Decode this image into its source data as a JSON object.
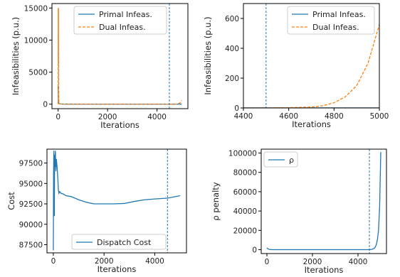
{
  "chart_data": [
    {
      "type": "line",
      "xlabel": "Iterations",
      "ylabel": "Infeasibilities (p.u.)",
      "xlim": [
        -250,
        5250
      ],
      "ylim": [
        -700,
        15700
      ],
      "xticks": [
        0,
        2000,
        4000
      ],
      "yticks": [
        0,
        5000,
        10000,
        15000
      ],
      "grid": false,
      "legend": {
        "placement": "upper-right",
        "entries": [
          "Primal Infeas.",
          "Dual Infeas."
        ]
      },
      "vline_x": 4500,
      "series": [
        {
          "name": "Primal Infeas.",
          "style": "solid",
          "color": "#1f77b4",
          "x": [
            0,
            10,
            30,
            60,
            100,
            300,
            1000,
            2000,
            3000,
            4000,
            4500,
            5000
          ],
          "y": [
            3000,
            500,
            150,
            60,
            30,
            15,
            8,
            6,
            5,
            5,
            5,
            5
          ]
        },
        {
          "name": "Dual Infeas.",
          "style": "dashed",
          "color": "#ff7f0e",
          "x": [
            0,
            5,
            10,
            15,
            20,
            25,
            30,
            40,
            50,
            70,
            100,
            200,
            1000,
            2000,
            3000,
            4000,
            4500,
            4800,
            4900,
            4950,
            5000
          ],
          "y": [
            0,
            15000,
            6000,
            15000,
            5000,
            1500,
            300,
            100,
            60,
            40,
            25,
            10,
            5,
            3,
            3,
            3,
            3,
            30,
            130,
            280,
            600
          ]
        }
      ]
    },
    {
      "type": "line",
      "xlabel": "Iterations",
      "ylabel": "Infeasibilities (p.u.)",
      "xlim": [
        4400,
        5000
      ],
      "ylim": [
        0,
        700
      ],
      "xticks": [
        4400,
        4600,
        4800,
        5000
      ],
      "yticks": [
        0,
        200,
        400,
        600
      ],
      "grid": false,
      "legend": {
        "placement": "upper-right",
        "entries": [
          "Primal Infeas.",
          "Dual Infeas."
        ]
      },
      "vline_x": 4500,
      "series": [
        {
          "name": "Primal Infeas.",
          "style": "solid",
          "color": "#1f77b4",
          "x": [
            4400,
            4600,
            4800,
            5000
          ],
          "y": [
            0.5,
            0.5,
            0.5,
            0.5
          ]
        },
        {
          "name": "Dual Infeas.",
          "style": "dashed",
          "color": "#ff7f0e",
          "x": [
            4400,
            4500,
            4600,
            4700,
            4750,
            4800,
            4850,
            4900,
            4950,
            5000
          ],
          "y": [
            0,
            0.5,
            2,
            6,
            15,
            35,
            75,
            150,
            300,
            560
          ]
        }
      ]
    },
    {
      "type": "line",
      "xlabel": "Iterations",
      "ylabel": "Cost",
      "xlim": [
        -250,
        5250
      ],
      "ylim": [
        86500,
        99200
      ],
      "xticks": [
        0,
        2000,
        4000
      ],
      "yticks": [
        87500,
        90000,
        92500,
        95000,
        97500
      ],
      "grid": false,
      "legend": {
        "placement": "lower-right",
        "entries": [
          "Dispatch Cost"
        ]
      },
      "vline_x": 4500,
      "series": [
        {
          "name": "Dispatch Cost",
          "style": "solid",
          "color": "#1f77b4",
          "x": [
            0,
            10,
            20,
            30,
            40,
            50,
            60,
            80,
            100,
            120,
            150,
            180,
            200,
            220,
            250,
            300,
            400,
            500,
            700,
            1000,
            1300,
            1600,
            2000,
            2400,
            2800,
            3200,
            3600,
            4000,
            4500,
            5000
          ],
          "y": [
            86800,
            96000,
            99000,
            97000,
            91000,
            98500,
            97000,
            99000,
            96500,
            98000,
            97000,
            95500,
            94200,
            93800,
            94000,
            93800,
            93700,
            93500,
            93400,
            93000,
            92700,
            92500,
            92500,
            92500,
            92550,
            92800,
            93000,
            93100,
            93200,
            93500
          ]
        }
      ]
    },
    {
      "type": "line",
      "xlabel": "Iterations",
      "ylabel": "ρ penalty",
      "xlim": [
        -250,
        5250
      ],
      "ylim": [
        -4000,
        104000
      ],
      "xticks": [
        0,
        2000,
        4000
      ],
      "yticks": [
        0,
        20000,
        40000,
        60000,
        80000,
        100000
      ],
      "grid": false,
      "legend": {
        "placement": "upper-left",
        "entries": [
          "ρ"
        ]
      },
      "vline_x": 4500,
      "series": [
        {
          "name": "ρ",
          "style": "solid",
          "color": "#1f77b4",
          "x": [
            0,
            50,
            100,
            200,
            500,
            1000,
            2000,
            3000,
            4000,
            4500,
            4600,
            4700,
            4750,
            4800,
            4850,
            4900,
            4950,
            5000
          ],
          "y": [
            2000,
            800,
            300,
            100,
            50,
            50,
            50,
            50,
            50,
            100,
            300,
            1200,
            2500,
            5000,
            10000,
            20000,
            45000,
            101000
          ]
        }
      ]
    }
  ]
}
